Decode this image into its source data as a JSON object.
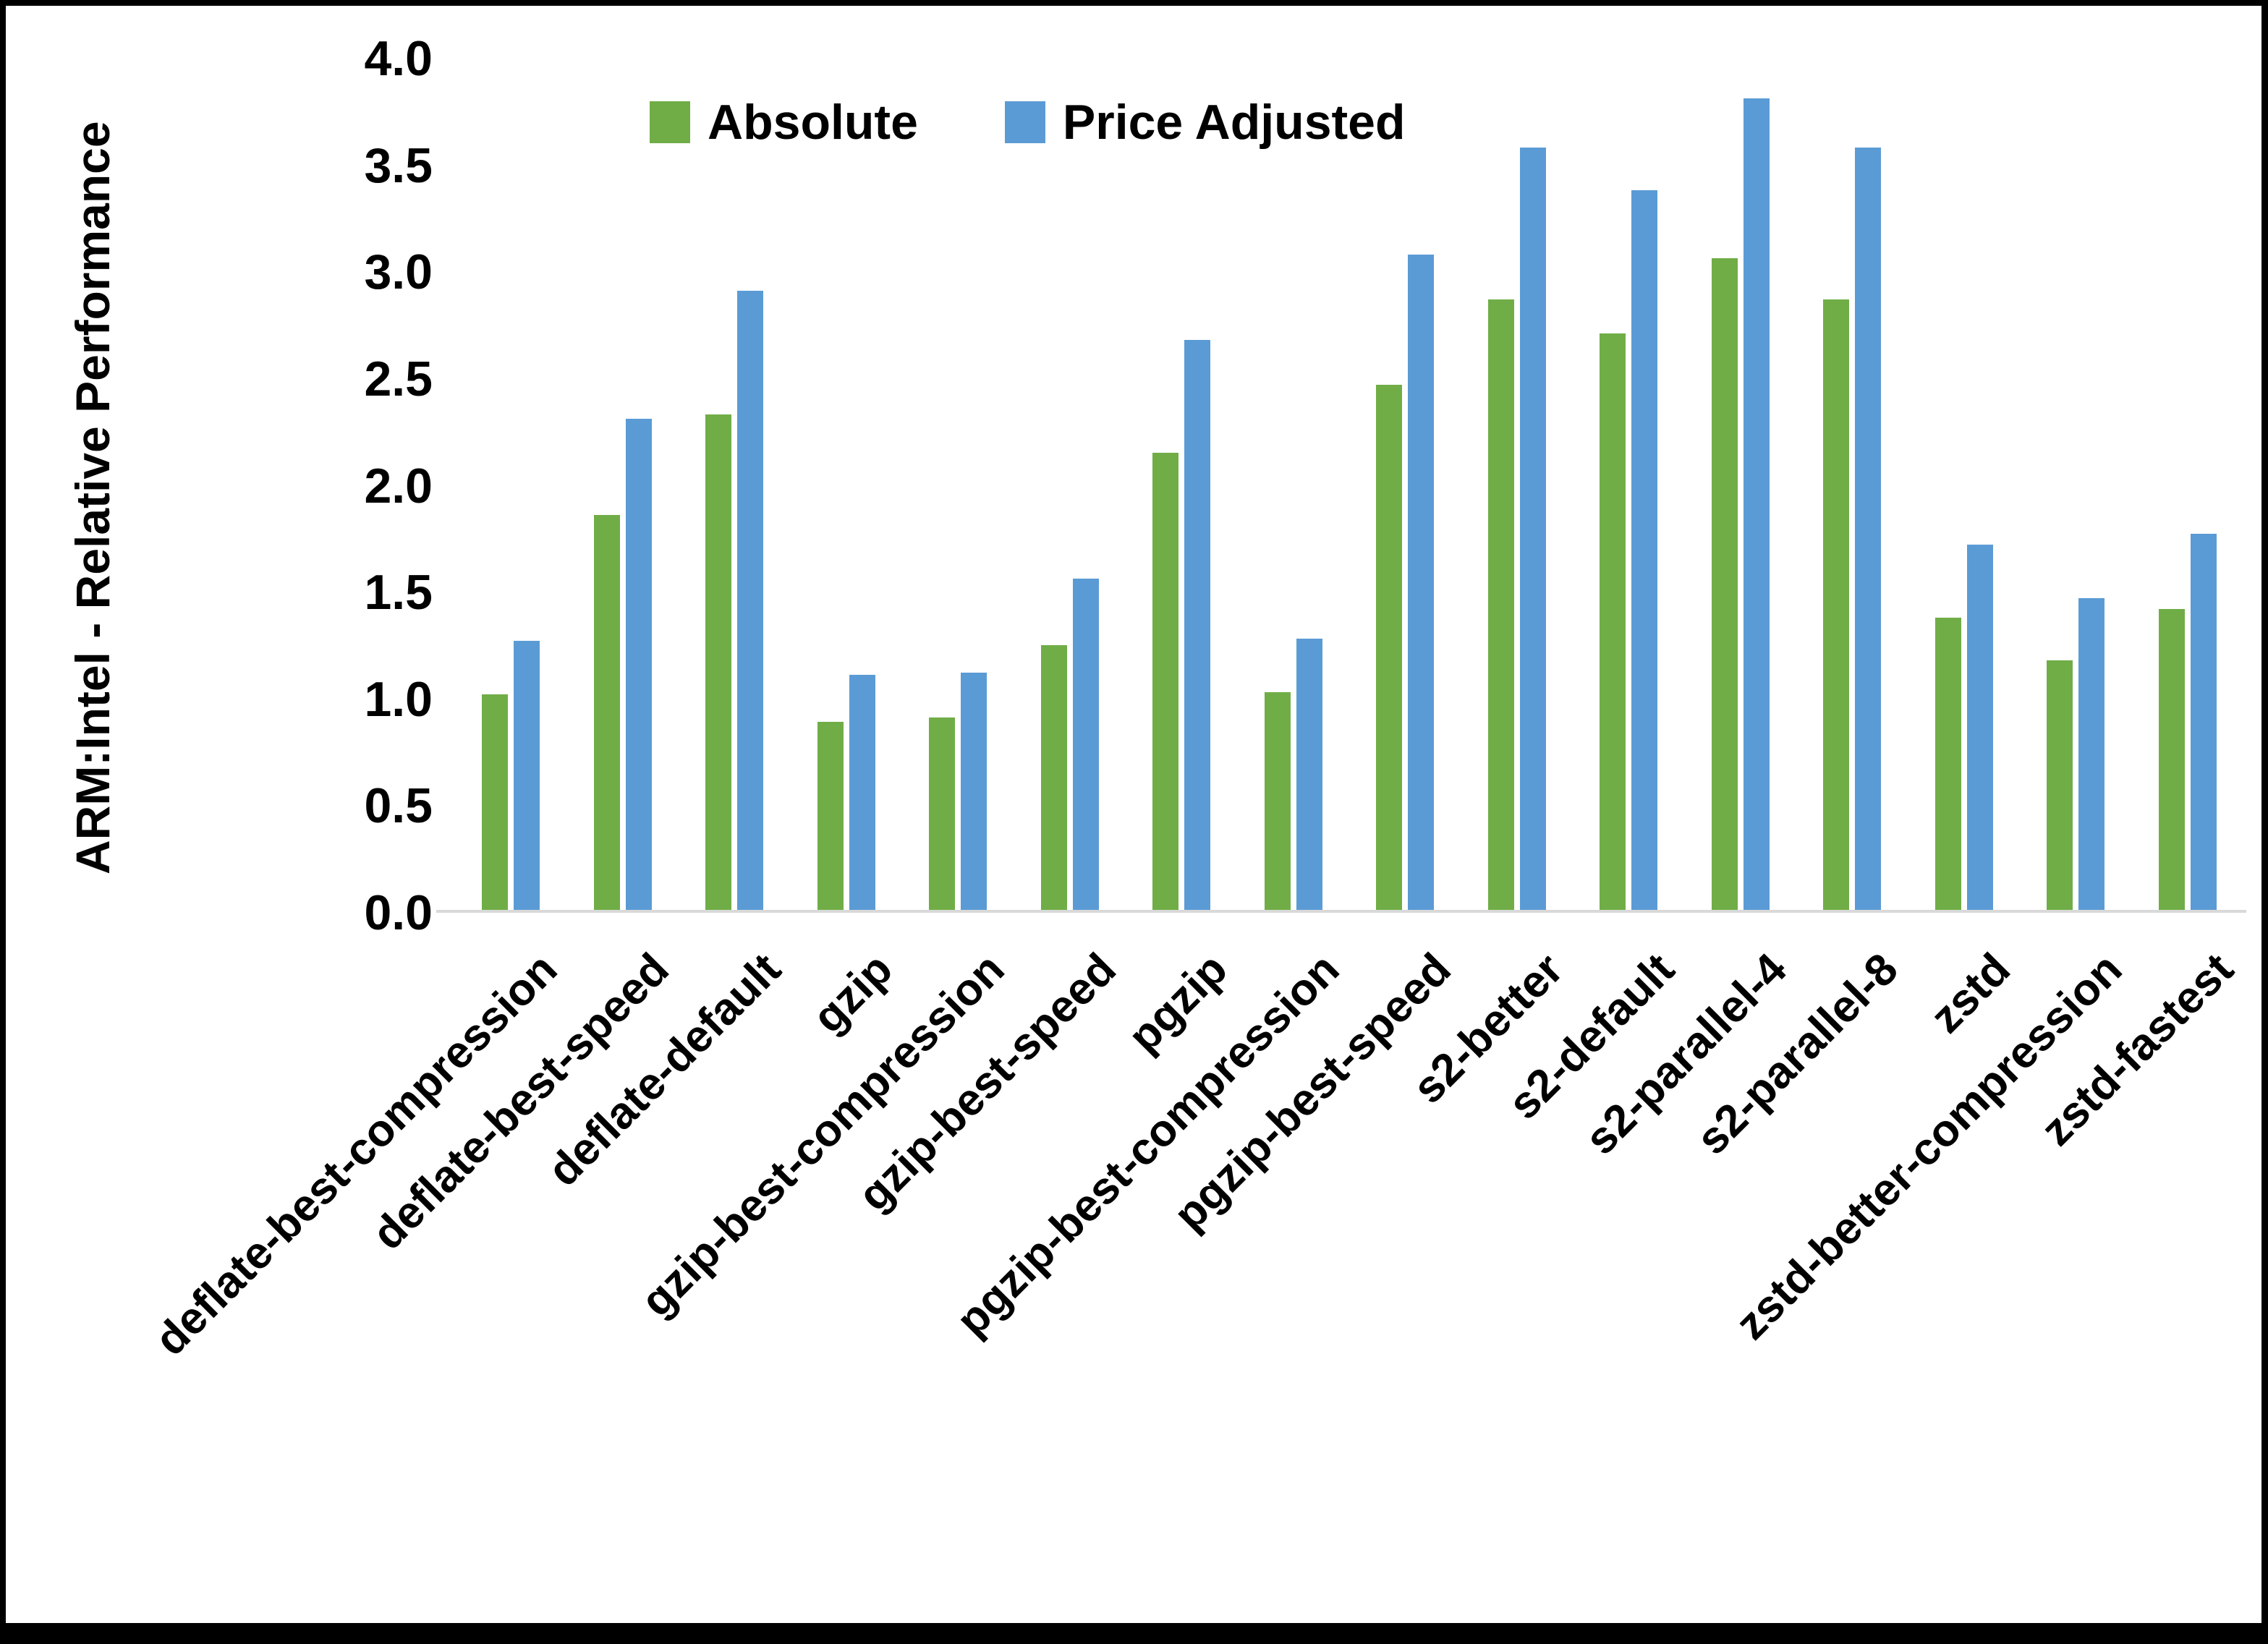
{
  "chart_data": {
    "type": "bar",
    "title": "",
    "ylabel": "ARM:Intel - Relative Performance",
    "xlabel": "",
    "ylim": [
      0.0,
      4.0
    ],
    "ytick_step": 0.5,
    "grid": false,
    "legend_position": "top",
    "categories": [
      "deflate-best-compression",
      "deflate-best-speed",
      "deflate-default",
      "gzip",
      "gzip-best-compression",
      "gzip-best-speed",
      "pgzip",
      "pgzip-best-compression",
      "pgzip-best-speed",
      "s2-better",
      "s2-default",
      "s2-parallel-4",
      "s2-parallel-8",
      "zstd",
      "zstd-better-compression",
      "zstd-fastest"
    ],
    "series": [
      {
        "name": "Absolute",
        "color": "#70AD47",
        "values": [
          1.01,
          1.85,
          2.32,
          0.88,
          0.9,
          1.24,
          2.14,
          1.02,
          2.46,
          2.86,
          2.7,
          3.05,
          2.86,
          1.37,
          1.17,
          1.41
        ]
      },
      {
        "name": "Price Adjusted",
        "color": "#5B9BD5",
        "values": [
          1.26,
          2.3,
          2.9,
          1.1,
          1.11,
          1.55,
          2.67,
          1.27,
          3.07,
          3.57,
          3.37,
          3.8,
          3.57,
          1.71,
          1.46,
          1.76
        ]
      }
    ],
    "y_tick_labels": [
      "0.0",
      "0.5",
      "1.0",
      "1.5",
      "2.0",
      "2.5",
      "3.0",
      "3.5",
      "4.0"
    ],
    "axis_line_color": "#d9d9d9"
  }
}
